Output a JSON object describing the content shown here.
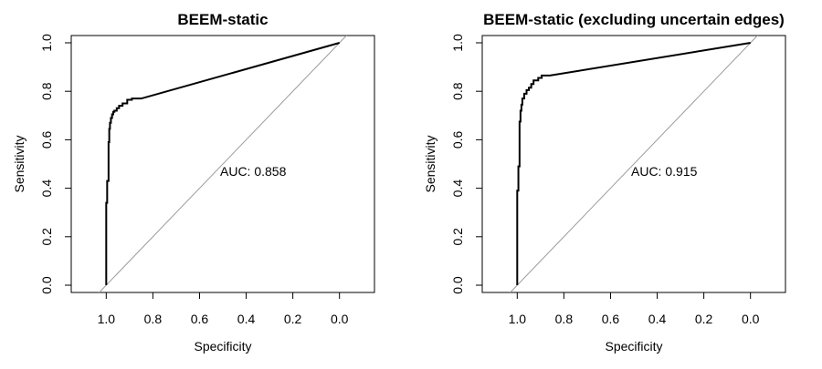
{
  "chart_data": [
    {
      "type": "line",
      "title": "BEEM-static",
      "xlabel": "Specificity",
      "ylabel": "Sensitivity",
      "x_reversed": true,
      "xlim": [
        1.15,
        -0.15
      ],
      "ylim": [
        -0.03,
        1.03
      ],
      "xticks": [
        1.0,
        0.8,
        0.6,
        0.4,
        0.2,
        0.0
      ],
      "xtick_labels": [
        "1.0",
        "0.8",
        "0.6",
        "0.4",
        "0.2",
        "0.0"
      ],
      "yticks": [
        0.0,
        0.2,
        0.4,
        0.6,
        0.8,
        1.0
      ],
      "ytick_labels": [
        "0.0",
        "0.2",
        "0.4",
        "0.6",
        "0.8",
        "1.0"
      ],
      "annotation": "AUC: 0.858",
      "annotation_pos": [
        0.37,
        0.47
      ],
      "reference_line": [
        [
          1.0,
          0.0
        ],
        [
          0.0,
          1.0
        ]
      ],
      "series": [
        {
          "x": [
            1.0,
            1.0,
            0.996,
            0.996,
            0.99,
            0.99,
            0.987,
            0.987,
            0.984,
            0.984,
            0.98,
            0.98,
            0.975,
            0.975,
            0.97,
            0.97,
            0.965,
            0.965,
            0.955,
            0.955,
            0.945,
            0.945,
            0.93,
            0.93,
            0.91,
            0.91,
            0.89,
            0.89,
            0.85,
            0.0
          ],
          "y": [
            0.0,
            0.34,
            0.34,
            0.43,
            0.43,
            0.59,
            0.59,
            0.645,
            0.645,
            0.67,
            0.67,
            0.69,
            0.69,
            0.705,
            0.705,
            0.715,
            0.715,
            0.72,
            0.72,
            0.73,
            0.73,
            0.74,
            0.74,
            0.75,
            0.75,
            0.765,
            0.765,
            0.77,
            0.77,
            1.0
          ]
        }
      ]
    },
    {
      "type": "line",
      "title": "BEEM-static (excluding uncertain edges)",
      "xlabel": "Specificity",
      "ylabel": "Sensitivity",
      "x_reversed": true,
      "xlim": [
        1.15,
        -0.15
      ],
      "ylim": [
        -0.03,
        1.03
      ],
      "xticks": [
        1.0,
        0.8,
        0.6,
        0.4,
        0.2,
        0.0
      ],
      "xtick_labels": [
        "1.0",
        "0.8",
        "0.6",
        "0.4",
        "0.2",
        "0.0"
      ],
      "yticks": [
        0.0,
        0.2,
        0.4,
        0.6,
        0.8,
        1.0
      ],
      "ytick_labels": [
        "0.0",
        "0.2",
        "0.4",
        "0.6",
        "0.8",
        "1.0"
      ],
      "annotation": "AUC: 0.915",
      "annotation_pos": [
        0.37,
        0.47
      ],
      "reference_line": [
        [
          1.0,
          0.0
        ],
        [
          0.0,
          1.0
        ]
      ],
      "series": [
        {
          "x": [
            1.0,
            1.0,
            0.995,
            0.995,
            0.99,
            0.99,
            0.986,
            0.986,
            0.982,
            0.982,
            0.978,
            0.978,
            0.97,
            0.97,
            0.96,
            0.96,
            0.95,
            0.95,
            0.94,
            0.94,
            0.93,
            0.93,
            0.91,
            0.91,
            0.895,
            0.895,
            0.86,
            0.0
          ],
          "y": [
            0.0,
            0.39,
            0.39,
            0.49,
            0.49,
            0.675,
            0.675,
            0.72,
            0.72,
            0.745,
            0.745,
            0.77,
            0.77,
            0.79,
            0.79,
            0.805,
            0.805,
            0.815,
            0.815,
            0.83,
            0.83,
            0.845,
            0.845,
            0.855,
            0.855,
            0.865,
            0.865,
            1.0
          ]
        }
      ]
    }
  ]
}
